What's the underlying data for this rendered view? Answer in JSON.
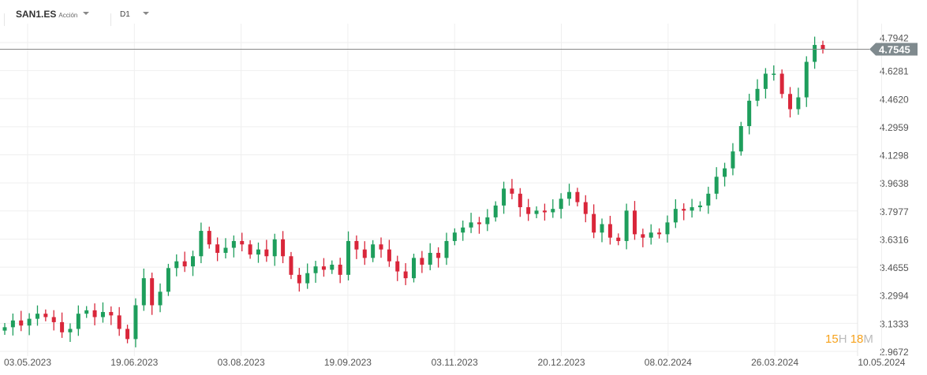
{
  "header": {
    "symbol": "SAN1.ES",
    "instrument_type": "Acción",
    "timeframe": "D1"
  },
  "countdown": {
    "hours": "15",
    "h_unit": "H",
    "minutes": "18",
    "m_unit": "M"
  },
  "colors": {
    "up": "#1e9e5c",
    "down": "#d9263a",
    "grid": "#efefef",
    "last_price_tag": "#7f8a8e"
  },
  "chart_data": {
    "type": "candlestick",
    "last_price": "4.7545",
    "last_price_value": 4.7545,
    "ylim": [
      2.9672,
      4.7942
    ],
    "y_ticks": [
      "4.7942",
      "4.6281",
      "4.4620",
      "4.2959",
      "4.1298",
      "3.9638",
      "3.7977",
      "3.6316",
      "3.4655",
      "3.2994",
      "3.1333",
      "2.9672"
    ],
    "x_ticks": [
      "03.05.2023",
      "19.06.2023",
      "03.08.2023",
      "19.09.2023",
      "03.11.2023",
      "20.12.2023",
      "08.02.2024",
      "26.03.2024",
      "10.05.2024"
    ],
    "grid": true,
    "closes": [
      3.11,
      3.15,
      3.12,
      3.16,
      3.19,
      3.17,
      3.14,
      3.08,
      3.1,
      3.19,
      3.21,
      3.17,
      3.2,
      3.18,
      3.1,
      3.04,
      3.24,
      3.4,
      3.24,
      3.32,
      3.46,
      3.5,
      3.47,
      3.53,
      3.68,
      3.6,
      3.55,
      3.58,
      3.62,
      3.6,
      3.54,
      3.57,
      3.53,
      3.63,
      3.53,
      3.42,
      3.37,
      3.43,
      3.47,
      3.45,
      3.48,
      3.42,
      3.62,
      3.57,
      3.52,
      3.6,
      3.57,
      3.5,
      3.44,
      3.4,
      3.52,
      3.48,
      3.55,
      3.52,
      3.62,
      3.67,
      3.7,
      3.73,
      3.72,
      3.76,
      3.83,
      3.93,
      3.9,
      3.82,
      3.78,
      3.8,
      3.79,
      3.81,
      3.87,
      3.91,
      3.85,
      3.78,
      3.67,
      3.72,
      3.64,
      3.62,
      3.8,
      3.66,
      3.64,
      3.67,
      3.66,
      3.73,
      3.81,
      3.8,
      3.82,
      3.83,
      3.9,
      4.0,
      4.05,
      4.15,
      4.3,
      4.45,
      4.52,
      4.61,
      4.61,
      4.49,
      4.4,
      4.47,
      4.68,
      4.78,
      4.7545
    ]
  }
}
